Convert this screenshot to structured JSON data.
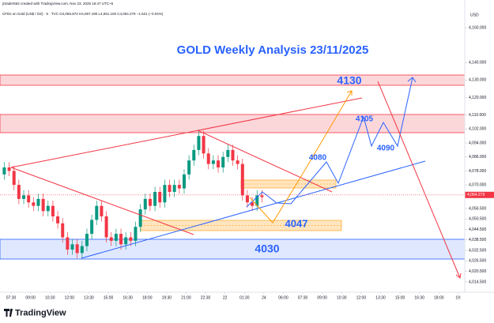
{
  "chart_data": {
    "type": "candlestick",
    "header": "jrtrader562 created with TradingView.com, Nov 23, 2025 16:47 UTC+5",
    "symbol_line": "CFDs on Gold (US$ / OZ) · 5 · TVC  O4,065.872 H4,067.190 L4,061.100 C4,064.279 −1.621 (−0.04%)",
    "title": "GOLD Weekly Analysis 23/11/2025",
    "currency": "USD",
    "logo": "TradingView",
    "last_price": {
      "value": 4064.279,
      "label": "4,064.279"
    },
    "annotations": [
      "4130",
      "4105",
      "4090",
      "4080",
      "4047",
      "4030"
    ],
    "up_color": "#089981",
    "down_color": "#f23645",
    "x": [
      -0.35,
      -0.1,
      0.15,
      0.4,
      0.65,
      0.9,
      1.15,
      1.4,
      1.65,
      1.9,
      2.15,
      2.4,
      2.65,
      2.9,
      3.15,
      3.4,
      3.65,
      3.9,
      4.15,
      4.4,
      4.65,
      4.9,
      5.15,
      5.4,
      5.65,
      5.9,
      6.15,
      6.4,
      6.65,
      6.9,
      7.15,
      7.4,
      7.65,
      7.9,
      8.15,
      8.4,
      8.65,
      8.9,
      9.15,
      9.4,
      9.65,
      9.9,
      10.15,
      10.4,
      10.65,
      10.9,
      11.15,
      11.4,
      11.65,
      11.9,
      12.15,
      12.4,
      12.65,
      12.9
    ],
    "open": [
      4076,
      4080,
      4078,
      4070,
      4062,
      4064,
      4060,
      4058,
      4062,
      4055,
      4058,
      4052,
      4048,
      4040,
      4033,
      4036,
      4031,
      4035,
      4042,
      4050,
      4058,
      4052,
      4040,
      4038,
      4042,
      4036,
      4040,
      4038,
      4046,
      4056,
      4062,
      4058,
      4066,
      4060,
      4070,
      4066,
      4070,
      4068,
      4076,
      4084,
      4090,
      4098,
      4088,
      4082,
      4084,
      4080,
      4086,
      4090,
      4084,
      4082,
      4064,
      4060,
      4058,
      4064
    ],
    "high": [
      4083,
      4083,
      4081,
      4073,
      4067,
      4067,
      4063,
      4065,
      4065,
      4061,
      4061,
      4055,
      4051,
      4043,
      4039,
      4039,
      4038,
      4045,
      4053,
      4061,
      4061,
      4055,
      4043,
      4045,
      4045,
      4043,
      4043,
      4049,
      4059,
      4065,
      4065,
      4069,
      4069,
      4073,
      4073,
      4073,
      4073,
      4079,
      4087,
      4093,
      4101,
      4101,
      4091,
      4087,
      4087,
      4089,
      4093,
      4093,
      4087,
      4085,
      4067,
      4063,
      4067,
      4067
    ],
    "low": [
      4073,
      4075,
      4067,
      4059,
      4059,
      4057,
      4055,
      4055,
      4052,
      4052,
      4049,
      4045,
      4037,
      4030,
      4030,
      4028,
      4028,
      4032,
      4039,
      4047,
      4049,
      4037,
      4035,
      4035,
      4033,
      4033,
      4035,
      4035,
      4043,
      4053,
      4055,
      4055,
      4057,
      4057,
      4063,
      4063,
      4065,
      4065,
      4073,
      4081,
      4087,
      4085,
      4079,
      4079,
      4077,
      4077,
      4083,
      4081,
      4079,
      4061,
      4057,
      4055,
      4055,
      4060
    ],
    "close": [
      4080,
      4078,
      4070,
      4062,
      4064,
      4060,
      4058,
      4062,
      4055,
      4058,
      4052,
      4048,
      4040,
      4033,
      4036,
      4031,
      4035,
      4042,
      4050,
      4058,
      4052,
      4040,
      4038,
      4042,
      4036,
      4040,
      4038,
      4046,
      4056,
      4062,
      4058,
      4066,
      4060,
      4070,
      4066,
      4070,
      4068,
      4076,
      4084,
      4090,
      4098,
      4088,
      4082,
      4084,
      4080,
      4086,
      4090,
      4084,
      4082,
      4064,
      4060,
      4058,
      4064,
      4063
    ],
    "xlim": [
      -0.57,
      23.33
    ],
    "xticks": [
      {
        "value": 0,
        "label": "07:30"
      },
      {
        "value": 1,
        "label": "09:00"
      },
      {
        "value": 2,
        "label": "10:30"
      },
      {
        "value": 3,
        "label": "12:00"
      },
      {
        "value": 4,
        "label": "13:30"
      },
      {
        "value": 5,
        "label": "15:00"
      },
      {
        "value": 6,
        "label": "16:30"
      },
      {
        "value": 7,
        "label": "18:00"
      },
      {
        "value": 8,
        "label": "19:30"
      },
      {
        "value": 9,
        "label": "21:00"
      },
      {
        "value": 10,
        "label": "22:30"
      },
      {
        "value": 11,
        "label": "22"
      },
      {
        "value": 12,
        "label": "01:30"
      },
      {
        "value": 13,
        "label": "24"
      },
      {
        "value": 14,
        "label": "06:00"
      },
      {
        "value": 15,
        "label": "07:30"
      },
      {
        "value": 16,
        "label": "09:00"
      },
      {
        "value": 17,
        "label": "10:30"
      },
      {
        "value": 18,
        "label": "12:00"
      },
      {
        "value": 19,
        "label": "13:30"
      },
      {
        "value": 20,
        "label": "15:00"
      },
      {
        "value": 21,
        "label": "16:30"
      },
      {
        "value": 22,
        "label": "18:00"
      },
      {
        "value": 23,
        "label": "19:"
      }
    ],
    "ylim": [
      4009.5,
      4169.5
    ],
    "yticks": [
      {
        "value": 4160,
        "label": "4,160.000"
      },
      {
        "value": 4140,
        "label": "4,140.000"
      },
      {
        "value": 4130,
        "label": "4,130.000"
      },
      {
        "value": 4120,
        "label": "4,120.000"
      },
      {
        "value": 4110,
        "label": "4,110.000"
      },
      {
        "value": 4102,
        "label": "4,102.000"
      },
      {
        "value": 4094,
        "label": "4,094.000"
      },
      {
        "value": 4086,
        "label": "4,086.000"
      },
      {
        "value": 4078,
        "label": "4,078.000"
      },
      {
        "value": 4070,
        "label": "4,070.000"
      },
      {
        "value": 4056.5,
        "label": "4,056.500"
      },
      {
        "value": 4050.5,
        "label": "4,050.500"
      },
      {
        "value": 4044.5,
        "label": "4,044.500"
      },
      {
        "value": 4038.5,
        "label": "4,038.500"
      },
      {
        "value": 4032.5,
        "label": "4,032.500"
      },
      {
        "value": 4026.5,
        "label": "4,026.500"
      },
      {
        "value": 4020.5,
        "label": "4,020.500"
      },
      {
        "value": 4014.5,
        "label": "4,014.500"
      }
    ]
  }
}
